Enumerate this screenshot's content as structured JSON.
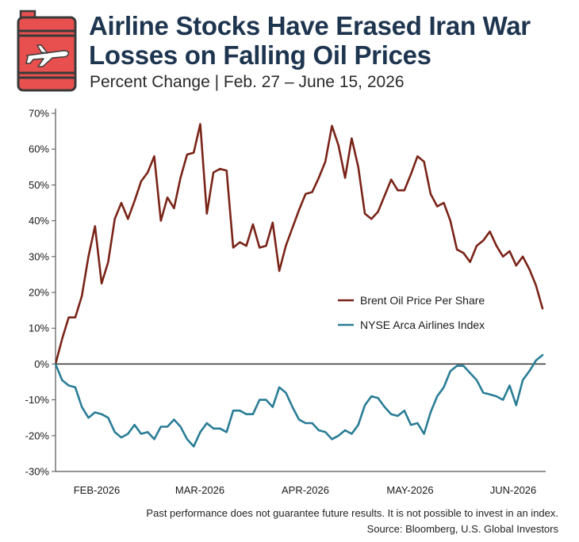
{
  "header": {
    "title_line1": "Airline Stocks Have Erased Iran War",
    "title_line2": "Losses on Falling Oil Prices",
    "subtitle": "Percent Change | Feb. 27 – June 15, 2026"
  },
  "footer": {
    "disclaimer": "Past performance does not guarantee future results. It is not possible to invest in an index.",
    "source": "Source: Bloomberg, U.S. Global Investors"
  },
  "colors": {
    "title": "#1e3550",
    "brent": "#7a2418",
    "airlines": "#2a7d96",
    "logo_red": "#e8504f"
  },
  "icons": [
    "oil-barrel-icon",
    "airplane-icon"
  ],
  "chart_data": {
    "type": "line",
    "ylim": [
      -30,
      70
    ],
    "yticks": [
      -30,
      -20,
      -10,
      0,
      10,
      20,
      30,
      40,
      50,
      60,
      70
    ],
    "yticklabels": [
      "-30%",
      "-20%",
      "-10%",
      "0%",
      "10%",
      "20%",
      "30%",
      "40%",
      "50%",
      "60%",
      "70%"
    ],
    "xticklabels": [
      "FEB-2026",
      "MAR-2026",
      "APR-2026",
      "MAY-2026",
      "JUN-2026"
    ],
    "grid": false,
    "legend_position": "right",
    "zero_line": true,
    "series": [
      {
        "name": "Brent Oil Price Per Share",
        "values": [
          0,
          7,
          13,
          13,
          19,
          30,
          38.5,
          22.5,
          28.5,
          40.5,
          45,
          40.5,
          45.5,
          51,
          53.5,
          58,
          40,
          46.5,
          43.5,
          52,
          58.5,
          59,
          67,
          42,
          53.5,
          54.5,
          54,
          32.5,
          34,
          33,
          39,
          32.5,
          33,
          39.5,
          26,
          33,
          38,
          43,
          47.5,
          48,
          52,
          56.5,
          66.5,
          61,
          52,
          63,
          55,
          42,
          40.5,
          42.5,
          47,
          51.5,
          48.5,
          48.5,
          53,
          58,
          56.5,
          47.5,
          44,
          45,
          40,
          32,
          31,
          28.5,
          33,
          34.5,
          37,
          33,
          30,
          31.5,
          27.5,
          30,
          26.5,
          22,
          15.5
        ]
      },
      {
        "name": "NYSE Arca Airlines Index",
        "values": [
          0,
          -4.5,
          -6,
          -6.5,
          -12,
          -15,
          -13.5,
          -14,
          -15,
          -19,
          -20.5,
          -19.5,
          -17,
          -19.5,
          -19,
          -21,
          -17.5,
          -17.5,
          -15.5,
          -17.5,
          -21,
          -23,
          -19,
          -16.5,
          -18,
          -18,
          -19,
          -13,
          -13,
          -14,
          -14,
          -10,
          -10,
          -12,
          -6.5,
          -8,
          -12,
          -15.5,
          -16.5,
          -16.5,
          -18.5,
          -19,
          -21,
          -20,
          -18.5,
          -19.5,
          -17,
          -11.5,
          -9,
          -9.5,
          -12,
          -14,
          -14.5,
          -13,
          -17,
          -16.5,
          -19.5,
          -13.5,
          -9,
          -6.5,
          -2,
          -0.5,
          -0.5,
          -2.5,
          -4.5,
          -8,
          -8.5,
          -9,
          -10,
          -6,
          -11.5,
          -4.5,
          -2,
          1,
          2.5
        ]
      }
    ]
  }
}
